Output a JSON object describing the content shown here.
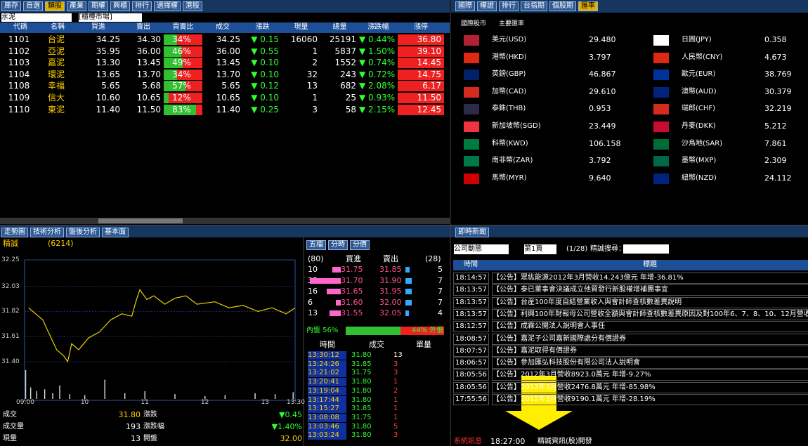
{
  "quotes": {
    "tabs": [
      "庫存",
      "自選",
      "類股",
      "產業",
      "期權",
      "興櫃",
      "排行",
      "選擇權",
      "港股"
    ],
    "filters": [
      "水泥",
      "[櫃檯市場]"
    ],
    "columns": [
      "代碼",
      "名稱",
      "買進",
      "賣出",
      "買賣比",
      "成交",
      "漲跌",
      "現量",
      "總量",
      "漲跌幅",
      "漲停"
    ],
    "rows": [
      {
        "code": "1101",
        "name": "台泥",
        "bid": "34.25",
        "ask": "34.30",
        "ratio": 34,
        "ratio_label": "34%",
        "deal": "34.25",
        "change": "▼ 0.15",
        "vol": "16060",
        "total": "25191",
        "pct": "▼ 0.44%",
        "limit": "36.80"
      },
      {
        "code": "1102",
        "name": "亞泥",
        "bid": "35.95",
        "ask": "36.00",
        "ratio": 46,
        "ratio_label": "46%",
        "deal": "36.00",
        "change": "▼ 0.55",
        "vol": "1",
        "total": "5837",
        "pct": "▼ 1.50%",
        "limit": "39.10"
      },
      {
        "code": "1103",
        "name": "嘉泥",
        "bid": "13.30",
        "ask": "13.45",
        "ratio": 49,
        "ratio_label": "49%",
        "deal": "13.45",
        "change": "▼ 0.10",
        "vol": "2",
        "total": "1552",
        "pct": "▼ 0.74%",
        "limit": "14.45"
      },
      {
        "code": "1104",
        "name": "環泥",
        "bid": "13.65",
        "ask": "13.70",
        "ratio": 34,
        "ratio_label": "34%",
        "deal": "13.70",
        "change": "▼ 0.10",
        "vol": "32",
        "total": "243",
        "pct": "▼ 0.72%",
        "limit": "14.75"
      },
      {
        "code": "1108",
        "name": "幸福",
        "bid": "5.65",
        "ask": "5.68",
        "ratio": 57,
        "ratio_label": "57%",
        "deal": "5.65",
        "change": "▼ 0.12",
        "vol": "13",
        "total": "682",
        "pct": "▼ 2.08%",
        "limit": "6.17"
      },
      {
        "code": "1109",
        "name": "信大",
        "bid": "10.60",
        "ask": "10.65",
        "ratio": 12,
        "ratio_label": "12%",
        "deal": "10.65",
        "change": "▼ 0.10",
        "vol": "1",
        "total": "25",
        "pct": "▼ 0.93%",
        "limit": "11.50"
      },
      {
        "code": "1110",
        "name": "東泥",
        "bid": "11.40",
        "ask": "11.50",
        "ratio": 83,
        "ratio_label": "83%",
        "deal": "11.40",
        "change": "▼ 0.25",
        "vol": "3",
        "total": "58",
        "pct": "▼ 2.15%",
        "limit": "12.45"
      }
    ]
  },
  "fx": {
    "tabs": [
      "國際",
      "權證",
      "排行",
      "台指期",
      "個股期",
      "匯率"
    ],
    "options": [
      "國際股市",
      "主要匯率"
    ],
    "left": [
      [
        "美元(USD)",
        "29.480"
      ],
      [
        "港幣(HKD)",
        "3.797"
      ],
      [
        "英鎊(GBP)",
        "46.867"
      ],
      [
        "加幣(CAD)",
        "29.610"
      ],
      [
        "泰銖(THB)",
        "0.953"
      ],
      [
        "新加坡幣(SGD)",
        "23.449"
      ],
      [
        "科幣(KWD)",
        "106.158"
      ],
      [
        "南非幣(ZAR)",
        "3.792"
      ],
      [
        "馬幣(MYR)",
        "9.640"
      ]
    ],
    "right": [
      [
        "日圓(JPY)",
        "0.358"
      ],
      [
        "人民幣(CNY)",
        "4.673"
      ],
      [
        "歐元(EUR)",
        "38.769"
      ],
      [
        "澳幣(AUD)",
        "30.379"
      ],
      [
        "瑞郎(CHF)",
        "32.219"
      ],
      [
        "丹麥(DKK)",
        "5.212"
      ],
      [
        "沙烏地(SAR)",
        "7.861"
      ],
      [
        "墨幣(MXP)",
        "2.309"
      ],
      [
        "紐幣(NZD)",
        "24.112"
      ]
    ]
  },
  "intraday": {
    "tabs": [
      "走勢圖",
      "技術分析",
      "盤後分析",
      "基本面"
    ],
    "name": "精誠",
    "code": "(6214)",
    "ylim": [
      31.4,
      32.25
    ],
    "yticks": [
      32.25,
      32.03,
      31.82,
      31.61,
      {
        "value": 31.4,
        "label": "31.40"
      }
    ],
    "xlim": [
      0,
      270
    ],
    "xticks": [
      {
        "value": 0,
        "label": "09:00"
      },
      {
        "value": 60,
        "label": "10"
      },
      {
        "value": 120,
        "label": "11"
      },
      {
        "value": 180,
        "label": "12"
      },
      {
        "value": 240,
        "label": "13"
      },
      {
        "value": 270,
        "label": "13:30"
      }
    ],
    "minutes": [
      4,
      18,
      32,
      39,
      43,
      47,
      54,
      64,
      75,
      86,
      97,
      107,
      111,
      115,
      122,
      129,
      140,
      150,
      161,
      172,
      190,
      204,
      218,
      233,
      247,
      261,
      270
    ],
    "prices": [
      31.85,
      31.75,
      31.5,
      31.45,
      31.4,
      31.55,
      31.5,
      31.6,
      31.65,
      31.75,
      31.8,
      31.78,
      31.9,
      32.0,
      31.92,
      31.95,
      31.88,
      31.93,
      31.95,
      31.88,
      31.9,
      31.85,
      31.87,
      31.82,
      31.85,
      31.8,
      31.85
    ],
    "volume_minutes": [
      1,
      6,
      12,
      20,
      28,
      35,
      45,
      60,
      80,
      100,
      120,
      150,
      180,
      200,
      230,
      250,
      268
    ],
    "volumes": [
      30,
      12,
      8,
      10,
      6,
      14,
      5,
      4,
      20,
      6,
      8,
      5,
      3,
      4,
      6,
      5,
      7
    ],
    "vlim": [
      0,
      35
    ],
    "info": [
      [
        "成交",
        "31.80",
        "漲跌",
        "▼0.45"
      ],
      [
        "成交量",
        "193",
        "漲跌幅",
        "▼1.40%"
      ],
      [
        "現量",
        "13",
        "開盤",
        "32.00"
      ]
    ]
  },
  "book": {
    "tabs": [
      "五檔",
      "分時",
      "分價"
    ],
    "bid_total": "(80)",
    "ask_total": "(28)",
    "bid_head": "買進",
    "ask_head": "賣出",
    "bid_qty": [
      10,
      35,
      16,
      6,
      13
    ],
    "bids": [
      "31.75",
      "31.70",
      "31.65",
      "31.60",
      "31.55"
    ],
    "asks": [
      "31.85",
      "31.90",
      "31.95",
      "32.00",
      "32.05"
    ],
    "ask_qty": [
      5,
      7,
      7,
      7,
      4
    ],
    "inner": 56,
    "inner_label": "內盤 56%",
    "outer": 44,
    "outer_label": "44% 外盤",
    "trade_head": [
      "時間",
      "成交",
      "單量"
    ],
    "trades": [
      [
        "13:30:12",
        "31.80",
        "13"
      ],
      [
        "13:24:26",
        "31.85",
        "3"
      ],
      [
        "13:21:02",
        "31.75",
        "3"
      ],
      [
        "13:20:41",
        "31.80",
        "1"
      ],
      [
        "13:19:04",
        "31.80",
        "2"
      ],
      [
        "13:17:44",
        "31.80",
        "1"
      ],
      [
        "13:15:27",
        "31.85",
        "1"
      ],
      [
        "13:08:08",
        "31.75",
        "1"
      ],
      [
        "13:03:46",
        "31.80",
        "5"
      ],
      [
        "13:03:24",
        "31.80",
        "3"
      ]
    ]
  },
  "news": {
    "tab": "即時新聞",
    "category": "公司動態",
    "page": "第1頁",
    "count": "(1/28)",
    "search": "精誠搜尋：",
    "head": [
      "時間",
      "標題"
    ],
    "rows": [
      [
        "18:14:57",
        "【公告】眾紘能源2012年3月營收14.243億元 年增-36.81%"
      ],
      [
        "18:13:57",
        "【公告】泰已董事會決議成立他貿發行新股權增補團事宜"
      ],
      [
        "18:13:57",
        "【公告】台産100年度自結營業收入與會計師查核數差異說明"
      ],
      [
        "18:13:57",
        "【公告】利興100年財報母公司營收全額與會計師查核數差異原因及對100年6、7、8、10、12月營收"
      ],
      [
        "18:12:57",
        "【公告】成霖公開法人說明會人事任"
      ],
      [
        "18:08:57",
        "【公告】嘉泥子公司嘉新國際處分有價證券"
      ],
      [
        "18:07:57",
        "【公告】嘉泥取得有價證券"
      ],
      [
        "18:06:57",
        "【公告】參加匯弘科技股份有限公司法人說明會"
      ],
      [
        "18:05:56",
        "【公告】2012年3月營收8923.0萬元 年增-9.27%"
      ],
      [
        "18:05:56",
        "【公告】2012年3月營收2476.8萬元 年增-85.98%"
      ],
      [
        "17:55:56",
        "【公告】2012年3月營收9190.1萬元 年增-28.19%"
      ]
    ],
    "status_label": "系統訊息",
    "status_time": "18:27:00",
    "status_text": "精誠資訊(股)開發"
  }
}
